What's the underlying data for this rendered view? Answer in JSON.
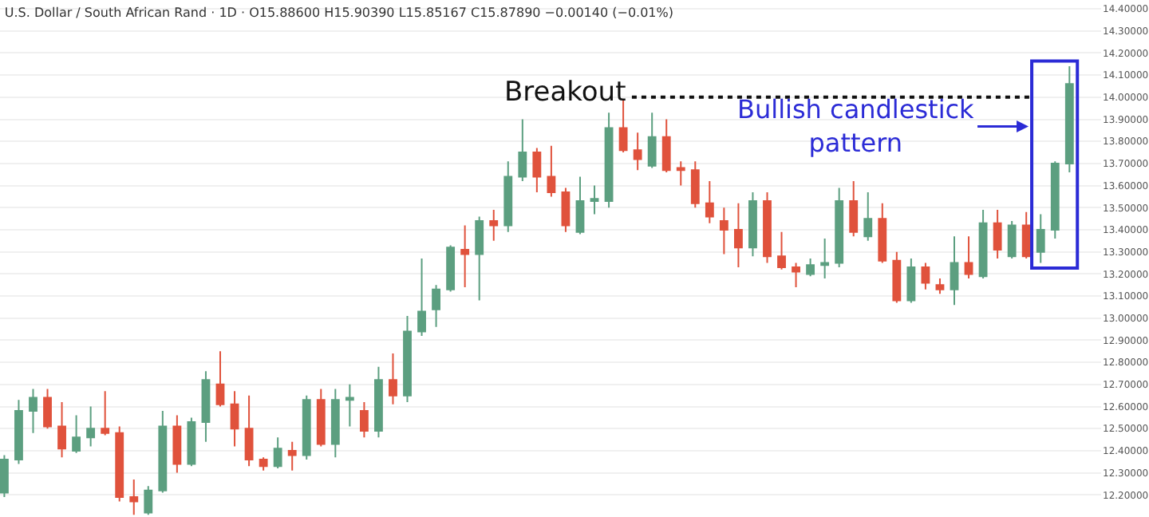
{
  "chart_data": {
    "type": "candlestick",
    "title": "U.S. Dollar / South African Rand · 1D · O15.88600 H15.90390 L15.85167 C15.87890 −0.00140 (−0.01%)",
    "categories": [
      null,
      null,
      null,
      null,
      null,
      null,
      null,
      null,
      null,
      null,
      null,
      null,
      null,
      null,
      null,
      null,
      null,
      null,
      null,
      null,
      null,
      null,
      null,
      null,
      null,
      null,
      null,
      null,
      null,
      null,
      null,
      null,
      null,
      null,
      null,
      null,
      null,
      null,
      null,
      null,
      null,
      null,
      null,
      null,
      null,
      null,
      null,
      null,
      null,
      null,
      null,
      null,
      null,
      null,
      null,
      null,
      null,
      null,
      null,
      null,
      null,
      null,
      null,
      null,
      null,
      null,
      null,
      null,
      null,
      null,
      null,
      null,
      null,
      null,
      null
    ],
    "ohlc": [
      [
        12.21,
        12.38,
        12.19,
        12.36
      ],
      [
        12.36,
        12.63,
        12.34,
        12.58
      ],
      [
        12.58,
        12.68,
        12.48,
        12.64
      ],
      [
        12.64,
        12.68,
        12.5,
        12.51
      ],
      [
        12.51,
        12.62,
        12.37,
        12.41
      ],
      [
        12.4,
        12.56,
        12.39,
        12.46
      ],
      [
        12.46,
        12.6,
        12.42,
        12.5
      ],
      [
        12.5,
        12.67,
        12.47,
        12.48
      ],
      [
        12.48,
        12.51,
        12.17,
        12.19
      ],
      [
        12.19,
        12.27,
        12.11,
        12.17
      ],
      [
        12.12,
        12.24,
        12.11,
        12.22
      ],
      [
        12.22,
        12.58,
        12.21,
        12.51
      ],
      [
        12.51,
        12.56,
        12.3,
        12.34
      ],
      [
        12.34,
        12.55,
        12.33,
        12.53
      ],
      [
        12.53,
        12.76,
        12.44,
        12.72
      ],
      [
        12.7,
        12.85,
        12.6,
        12.61
      ],
      [
        12.61,
        12.67,
        12.42,
        12.5
      ],
      [
        12.5,
        12.65,
        12.33,
        12.36
      ],
      [
        12.36,
        12.37,
        12.31,
        12.33
      ],
      [
        12.33,
        12.46,
        12.32,
        12.41
      ],
      [
        12.4,
        12.44,
        12.31,
        12.38
      ],
      [
        12.38,
        12.65,
        12.36,
        12.63
      ],
      [
        12.63,
        12.68,
        12.42,
        12.43
      ],
      [
        12.43,
        12.68,
        12.37,
        12.63
      ],
      [
        12.63,
        12.7,
        12.51,
        12.64
      ],
      [
        12.58,
        12.62,
        12.46,
        12.49
      ],
      [
        12.49,
        12.78,
        12.46,
        12.72
      ],
      [
        12.72,
        12.84,
        12.61,
        12.65
      ],
      [
        12.65,
        13.01,
        12.62,
        12.94
      ],
      [
        12.94,
        13.27,
        12.92,
        13.03
      ],
      [
        13.04,
        13.15,
        12.96,
        13.13
      ],
      [
        13.13,
        13.33,
        13.12,
        13.32
      ],
      [
        13.31,
        13.42,
        13.14,
        13.29
      ],
      [
        13.29,
        13.46,
        13.08,
        13.44
      ],
      [
        13.44,
        13.49,
        13.35,
        13.42
      ],
      [
        13.42,
        13.71,
        13.39,
        13.64
      ],
      [
        13.64,
        13.9,
        13.62,
        13.75
      ],
      [
        13.75,
        13.77,
        13.57,
        13.64
      ],
      [
        13.64,
        13.78,
        13.55,
        13.57
      ],
      [
        13.57,
        13.59,
        13.39,
        13.42
      ],
      [
        13.39,
        13.64,
        13.38,
        13.53
      ],
      [
        13.53,
        13.6,
        13.47,
        13.54
      ],
      [
        13.53,
        13.93,
        13.5,
        13.86
      ],
      [
        13.86,
        13.99,
        13.75,
        13.76
      ],
      [
        13.76,
        13.84,
        13.67,
        13.72
      ],
      [
        13.69,
        13.93,
        13.68,
        13.82
      ],
      [
        13.82,
        13.9,
        13.66,
        13.67
      ],
      [
        13.68,
        13.71,
        13.6,
        13.67
      ],
      [
        13.67,
        13.71,
        13.5,
        13.52
      ],
      [
        13.52,
        13.62,
        13.43,
        13.46
      ],
      [
        13.44,
        13.5,
        13.29,
        13.4
      ],
      [
        13.4,
        13.52,
        13.23,
        13.32
      ],
      [
        13.32,
        13.57,
        13.28,
        13.53
      ],
      [
        13.53,
        13.57,
        13.25,
        13.28
      ],
      [
        13.28,
        13.39,
        13.22,
        13.23
      ],
      [
        13.23,
        13.25,
        13.14,
        13.21
      ],
      [
        13.2,
        13.27,
        13.19,
        13.24
      ],
      [
        13.24,
        13.36,
        13.18,
        13.25
      ],
      [
        13.25,
        13.59,
        13.23,
        13.53
      ],
      [
        13.53,
        13.62,
        13.37,
        13.39
      ],
      [
        13.37,
        13.57,
        13.35,
        13.45
      ],
      [
        13.45,
        13.52,
        13.25,
        13.26
      ],
      [
        13.26,
        13.3,
        13.07,
        13.08
      ],
      [
        13.08,
        13.27,
        13.07,
        13.23
      ],
      [
        13.23,
        13.25,
        13.13,
        13.16
      ],
      [
        13.15,
        13.18,
        13.11,
        13.13
      ],
      [
        13.13,
        13.37,
        13.06,
        13.25
      ],
      [
        13.25,
        13.37,
        13.18,
        13.2
      ],
      [
        13.19,
        13.49,
        13.18,
        13.43
      ],
      [
        13.43,
        13.49,
        13.27,
        13.31
      ],
      [
        13.28,
        13.44,
        13.27,
        13.42
      ],
      [
        13.42,
        13.48,
        13.27,
        13.28
      ],
      [
        13.3,
        13.47,
        13.25,
        13.4
      ],
      [
        13.4,
        13.71,
        13.36,
        13.7
      ],
      [
        13.7,
        14.14,
        13.66,
        14.06
      ]
    ],
    "ylim": [
      12.1,
      14.44
    ],
    "yticks": [
      {
        "value": 12.2,
        "label": "12.20000"
      },
      {
        "value": 12.3,
        "label": "12.30000"
      },
      {
        "value": 12.4,
        "label": "12.40000"
      },
      {
        "value": 12.5,
        "label": "12.50000"
      },
      {
        "value": 12.6,
        "label": "12.60000"
      },
      {
        "value": 12.7,
        "label": "12.70000"
      },
      {
        "value": 12.8,
        "label": "12.80000"
      },
      {
        "value": 12.9,
        "label": "12.90000"
      },
      {
        "value": 13.0,
        "label": "13.00000"
      },
      {
        "value": 13.1,
        "label": "13.10000"
      },
      {
        "value": 13.2,
        "label": "13.20000"
      },
      {
        "value": 13.3,
        "label": "13.30000"
      },
      {
        "value": 13.4,
        "label": "13.40000"
      },
      {
        "value": 13.5,
        "label": "13.50000"
      },
      {
        "value": 13.6,
        "label": "13.60000"
      },
      {
        "value": 13.7,
        "label": "13.70000"
      },
      {
        "value": 13.8,
        "label": "13.80000"
      },
      {
        "value": 13.9,
        "label": "13.90000"
      },
      {
        "value": 14.0,
        "label": "14.00000"
      },
      {
        "value": 14.1,
        "label": "14.10000"
      },
      {
        "value": 14.2,
        "label": "14.20000"
      },
      {
        "value": 14.3,
        "label": "14.30000"
      },
      {
        "value": 14.4,
        "label": "14.40000"
      }
    ],
    "ref_lines": [
      {
        "axis": "y",
        "value": 14.0,
        "label": "Breakout",
        "color": "#111111",
        "line_style": "dotted"
      }
    ],
    "annotations": [
      "Bullish candlestick\npattern"
    ],
    "grid": "y",
    "tick_labels": "y"
  }
}
